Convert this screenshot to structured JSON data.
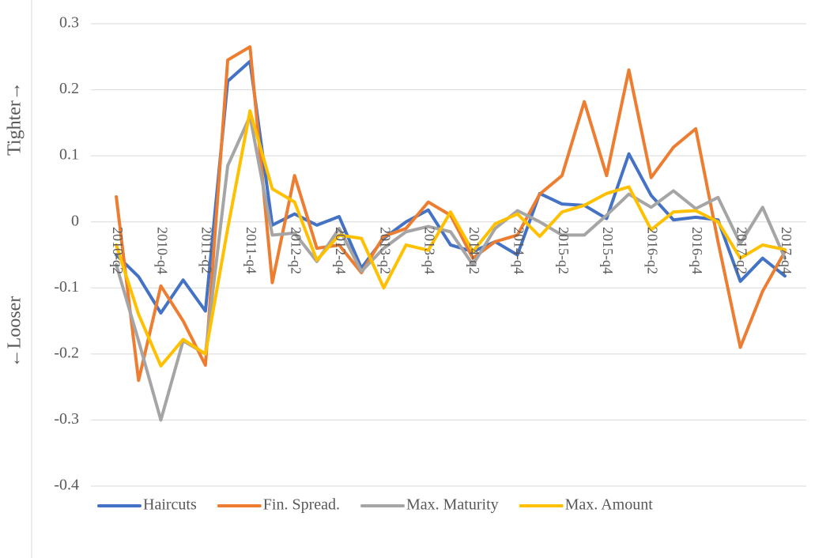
{
  "chart_data": {
    "type": "line",
    "annotations": [
      "Tighter→",
      "←Looser"
    ],
    "categories": [
      "2010-q2",
      null,
      "2010-q4",
      null,
      "2011-q2",
      null,
      "2011-q4",
      null,
      "2012-q2",
      null,
      "2012-q4",
      null,
      "2013-q2",
      null,
      "2013-q4",
      null,
      "2014-q2",
      null,
      "2014-q4",
      null,
      "2015-q2",
      null,
      "2015-q4",
      null,
      "2016-q2",
      null,
      "2016-q4",
      null,
      "2017-q2",
      null,
      "2017-q4"
    ],
    "series": [
      {
        "name": "Haircuts",
        "color": "#4472c4",
        "values": [
          -0.05,
          -0.083,
          -0.138,
          -0.088,
          -0.135,
          0.213,
          0.243,
          -0.005,
          0.012,
          -0.005,
          0.008,
          -0.07,
          -0.025,
          0.0,
          0.018,
          -0.035,
          -0.045,
          -0.03,
          -0.05,
          0.043,
          0.027,
          0.025,
          0.005,
          0.103,
          0.04,
          0.003,
          0.007,
          0.003,
          -0.09,
          -0.055,
          -0.082
        ]
      },
      {
        "name": "Fin. Spread.",
        "color": "#ed7d31",
        "values": [
          0.038,
          -0.24,
          -0.097,
          -0.15,
          -0.217,
          0.245,
          0.265,
          -0.092,
          0.07,
          -0.04,
          -0.035,
          -0.077,
          -0.022,
          -0.01,
          0.03,
          0.01,
          -0.055,
          -0.03,
          -0.02,
          0.042,
          0.07,
          0.182,
          0.07,
          0.23,
          0.067,
          0.113,
          0.141,
          -0.03,
          -0.19,
          -0.105,
          -0.045
        ]
      },
      {
        "name": "Max. Maturity",
        "color": "#a5a5a5",
        "values": [
          -0.065,
          -0.18,
          -0.3,
          -0.18,
          -0.2,
          0.085,
          0.16,
          -0.02,
          -0.017,
          -0.06,
          -0.01,
          -0.075,
          -0.04,
          -0.015,
          -0.007,
          -0.015,
          -0.065,
          -0.01,
          0.017,
          0.0,
          -0.02,
          -0.02,
          0.01,
          0.042,
          0.022,
          0.047,
          0.02,
          0.037,
          -0.033,
          0.022,
          -0.055
        ]
      },
      {
        "name": "Max. Amount",
        "color": "#ffc000",
        "values": [
          -0.035,
          -0.14,
          -0.218,
          -0.178,
          -0.2,
          -0.01,
          0.168,
          0.05,
          0.03,
          -0.058,
          -0.02,
          -0.025,
          -0.1,
          -0.035,
          -0.043,
          0.015,
          -0.045,
          -0.003,
          0.012,
          -0.022,
          0.015,
          0.025,
          0.043,
          0.053,
          -0.012,
          0.015,
          0.017,
          0.0,
          -0.055,
          -0.035,
          -0.042
        ]
      }
    ],
    "ylim": [
      -0.4,
      0.3
    ],
    "yticks": [
      0.3,
      0.2,
      0.1,
      0,
      -0.1,
      -0.2,
      -0.3,
      -0.4
    ],
    "grid": true
  }
}
